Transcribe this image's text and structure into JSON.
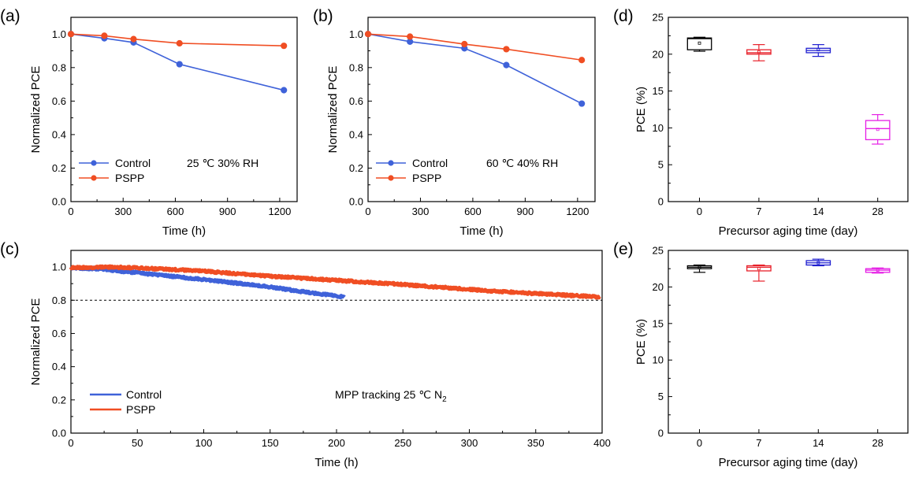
{
  "colors": {
    "control": "#3f62d9",
    "pspp": "#f04e23",
    "box0": "#000000",
    "box7": "#e8202a",
    "box14": "#1f1fd0",
    "box28": "#e51ee5"
  },
  "chart_data": [
    {
      "id": "a",
      "panel_label": "(a)",
      "type": "line",
      "xlabel": "Time (h)",
      "ylabel": "Normalized PCE",
      "xlim": [
        0,
        1300
      ],
      "ylim": [
        0,
        1.1
      ],
      "xticks": [
        0,
        300,
        600,
        900,
        1200
      ],
      "yticks": [
        0.0,
        0.2,
        0.4,
        0.6,
        0.8,
        1.0
      ],
      "x_tick_labels": [
        "0",
        "300",
        "600",
        "900",
        "1200"
      ],
      "y_tick_labels": [
        "0.0",
        "0.2",
        "0.4",
        "0.6",
        "0.8",
        "1.0"
      ],
      "annotation": "25 ℃ 30% RH",
      "series": [
        {
          "name": "Control",
          "color_key": "control",
          "x": [
            0,
            192,
            360,
            624,
            1224
          ],
          "y": [
            1.0,
            0.975,
            0.95,
            0.82,
            0.665
          ]
        },
        {
          "name": "PSPP",
          "color_key": "pspp",
          "x": [
            0,
            192,
            360,
            624,
            1224
          ],
          "y": [
            1.0,
            0.99,
            0.97,
            0.945,
            0.93
          ]
        }
      ]
    },
    {
      "id": "b",
      "panel_label": "(b)",
      "type": "line",
      "xlabel": "Time (h)",
      "ylabel": "Normalized PCE",
      "xlim": [
        0,
        1300
      ],
      "ylim": [
        0,
        1.1
      ],
      "xticks": [
        0,
        300,
        600,
        900,
        1200
      ],
      "yticks": [
        0.0,
        0.2,
        0.4,
        0.6,
        0.8,
        1.0
      ],
      "x_tick_labels": [
        "0",
        "300",
        "600",
        "900",
        "1200"
      ],
      "y_tick_labels": [
        "0.0",
        "0.2",
        "0.4",
        "0.6",
        "0.8",
        "1.0"
      ],
      "annotation": "60 ℃ 40% RH",
      "series": [
        {
          "name": "Control",
          "color_key": "control",
          "x": [
            0,
            240,
            552,
            792,
            1224
          ],
          "y": [
            1.0,
            0.955,
            0.915,
            0.815,
            0.585
          ]
        },
        {
          "name": "PSPP",
          "color_key": "pspp",
          "x": [
            0,
            240,
            552,
            792,
            1224
          ],
          "y": [
            1.0,
            0.985,
            0.94,
            0.91,
            0.845
          ]
        }
      ]
    },
    {
      "id": "c",
      "panel_label": "(c)",
      "type": "line",
      "xlabel": "Time (h)",
      "ylabel": "Normalized PCE",
      "xlim": [
        0,
        400
      ],
      "ylim": [
        0,
        1.1
      ],
      "xticks": [
        0,
        50,
        100,
        150,
        200,
        250,
        300,
        350,
        400
      ],
      "yticks": [
        0.0,
        0.2,
        0.4,
        0.6,
        0.8,
        1.0
      ],
      "x_tick_labels": [
        "0",
        "50",
        "100",
        "150",
        "200",
        "250",
        "300",
        "350",
        "400"
      ],
      "y_tick_labels": [
        "0.0",
        "0.2",
        "0.4",
        "0.6",
        "0.8",
        "1.0"
      ],
      "annotation": "MPP tracking   25 ℃  N",
      "annotation_sub": "2",
      "reference_line": 0.8,
      "series": [
        {
          "name": "Control",
          "color_key": "control",
          "x": [
            0,
            20,
            50,
            100,
            150,
            180,
            206
          ],
          "y": [
            0.995,
            0.99,
            0.965,
            0.925,
            0.88,
            0.845,
            0.82
          ]
        },
        {
          "name": "PSPP",
          "color_key": "pspp",
          "x": [
            0,
            25,
            50,
            100,
            150,
            200,
            250,
            300,
            350,
            398
          ],
          "y": [
            0.995,
            1.0,
            0.995,
            0.975,
            0.945,
            0.92,
            0.895,
            0.865,
            0.84,
            0.82
          ]
        }
      ]
    },
    {
      "id": "d",
      "panel_label": "(d)",
      "type": "box",
      "xlabel": "Precursor aging time (day)",
      "ylabel": "PCE (%)",
      "ylim": [
        0,
        25
      ],
      "yticks": [
        0,
        5,
        10,
        15,
        20,
        25
      ],
      "y_tick_labels": [
        "0",
        "5",
        "10",
        "15",
        "20",
        "25"
      ],
      "categories": [
        "0",
        "7",
        "14",
        "28"
      ],
      "boxes": [
        {
          "color_key": "box0",
          "whisker_low": 20.4,
          "q1": 20.6,
          "median": 22.1,
          "mean": 21.5,
          "q3": 22.2,
          "whisker_high": 22.3
        },
        {
          "color_key": "box7",
          "whisker_low": 19.1,
          "q1": 20.0,
          "median": 20.2,
          "mean": 20.3,
          "q3": 20.6,
          "whisker_high": 21.3
        },
        {
          "color_key": "box14",
          "whisker_low": 19.7,
          "q1": 20.2,
          "median": 20.5,
          "mean": 20.6,
          "q3": 20.8,
          "whisker_high": 21.3
        },
        {
          "color_key": "box28",
          "whisker_low": 7.8,
          "q1": 8.4,
          "median": 9.9,
          "mean": 9.8,
          "q3": 11.0,
          "whisker_high": 11.8
        }
      ]
    },
    {
      "id": "e",
      "panel_label": "(e)",
      "type": "box",
      "xlabel": "Precursor aging time (day)",
      "ylabel": "PCE (%)",
      "ylim": [
        0,
        25
      ],
      "yticks": [
        0,
        5,
        10,
        15,
        20,
        25
      ],
      "y_tick_labels": [
        "0",
        "5",
        "10",
        "15",
        "20",
        "25"
      ],
      "categories": [
        "0",
        "7",
        "14",
        "28"
      ],
      "boxes": [
        {
          "color_key": "box0",
          "whisker_low": 22.0,
          "q1": 22.5,
          "median": 22.7,
          "mean": 22.7,
          "q3": 22.9,
          "whisker_high": 23.0
        },
        {
          "color_key": "box7",
          "whisker_low": 20.8,
          "q1": 22.2,
          "median": 22.7,
          "mean": 22.5,
          "q3": 22.9,
          "whisker_high": 23.0
        },
        {
          "color_key": "box14",
          "whisker_low": 22.9,
          "q1": 23.0,
          "median": 23.3,
          "mean": 23.3,
          "q3": 23.6,
          "whisker_high": 23.8
        },
        {
          "color_key": "box28",
          "whisker_low": 21.9,
          "q1": 22.0,
          "median": 22.3,
          "mean": 22.3,
          "q3": 22.5,
          "whisker_high": 22.6
        }
      ]
    }
  ]
}
